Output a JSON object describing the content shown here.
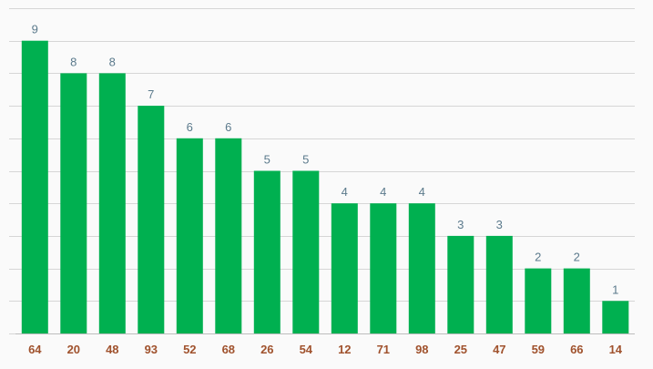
{
  "chart_data": {
    "type": "bar",
    "categories": [
      "64",
      "20",
      "48",
      "93",
      "52",
      "68",
      "26",
      "54",
      "12",
      "71",
      "98",
      "25",
      "47",
      "59",
      "66",
      "14"
    ],
    "values": [
      9,
      8,
      8,
      7,
      6,
      6,
      5,
      5,
      4,
      4,
      4,
      3,
      3,
      2,
      2,
      1
    ],
    "title": "",
    "xlabel": "",
    "ylabel": "",
    "ylim": [
      0,
      10
    ],
    "grid": true,
    "show_data_labels": true,
    "legend": "none",
    "colors": {
      "bar": "#00b050",
      "value_label": "#5b7a8c",
      "category_label": "#a0522d",
      "grid": "#d6d6d6",
      "background": "#fafafa"
    }
  }
}
